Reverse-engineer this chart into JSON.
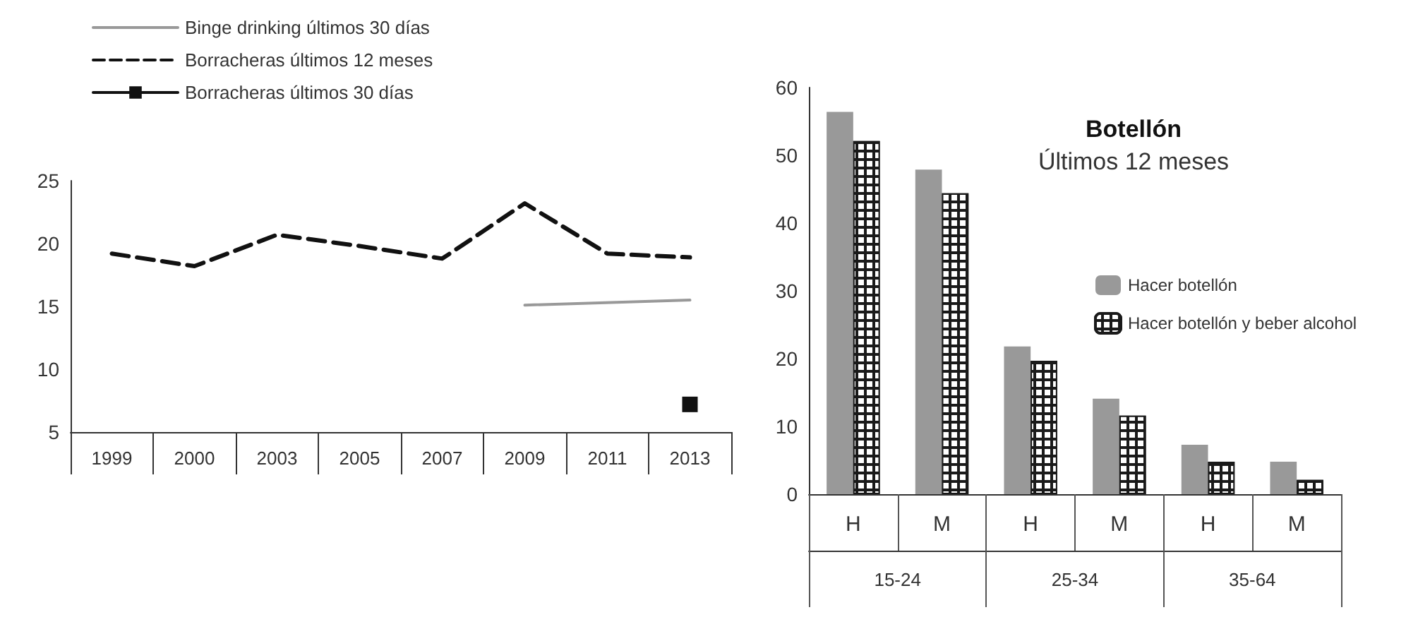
{
  "chart_data": [
    {
      "type": "line",
      "categories": [
        "1999",
        "2000",
        "2003",
        "2005",
        "2007",
        "2009",
        "2011",
        "2013"
      ],
      "series": [
        {
          "name": "Binge drinking últimos 30 días",
          "color": "#999999",
          "line_style": "solid",
          "marker": "none",
          "values": [
            null,
            null,
            null,
            null,
            null,
            15.1,
            null,
            15.5
          ]
        },
        {
          "name": "Borracheras últimos 12 meses",
          "color": "#111111",
          "line_style": "dashed",
          "marker": "none",
          "values": [
            19.2,
            18.2,
            20.7,
            19.8,
            18.8,
            23.2,
            19.2,
            18.9
          ]
        },
        {
          "name": "Borracheras últimos 30 días",
          "color": "#111111",
          "line_style": "solid",
          "marker": "square",
          "values": [
            null,
            null,
            null,
            null,
            null,
            null,
            null,
            7.2
          ]
        }
      ],
      "ylim": [
        5,
        25
      ],
      "yticks": [
        5,
        10,
        15,
        20,
        25
      ],
      "grid": false,
      "legend": "top left"
    },
    {
      "type": "bar",
      "title": "Botellón",
      "subtitle": "Últimos 12 meses",
      "categories": [
        "H",
        "M",
        "H",
        "M",
        "H",
        "M"
      ],
      "annotations": [
        "15-24",
        "25-34",
        "35-64"
      ],
      "series": [
        {
          "name": "Hacer botellón",
          "color": "#999999",
          "values": [
            56.4,
            47.9,
            21.8,
            14.1,
            7.3,
            4.8
          ]
        },
        {
          "name": "Hacer botellón y beber alcohol",
          "color": "#1a1a1a",
          "values": [
            52.1,
            44.4,
            19.7,
            11.6,
            4.8,
            2.1
          ]
        }
      ],
      "ylim": [
        0,
        60
      ],
      "yticks": [
        0,
        10,
        20,
        30,
        40,
        50,
        60
      ],
      "grid": false,
      "legend": "right"
    }
  ]
}
